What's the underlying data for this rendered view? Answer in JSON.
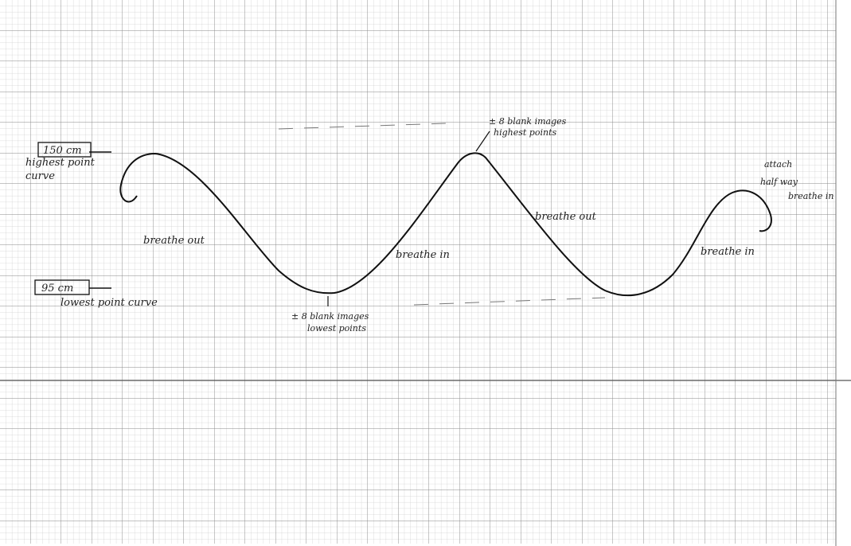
{
  "high_marker": {
    "value": "150 cm",
    "caption": [
      "highest point",
      "curve"
    ]
  },
  "low_marker": {
    "value": "95 cm",
    "caption": "lowest point curve"
  },
  "phases": [
    "breathe out",
    "breathe in",
    "breathe out",
    "breathe in"
  ],
  "peak_note": [
    "± 8 blank images",
    "highest points"
  ],
  "trough_note": [
    "± 8 blank images",
    "lowest points"
  ],
  "attach_note": [
    "attach",
    "half way",
    "breathe in"
  ]
}
